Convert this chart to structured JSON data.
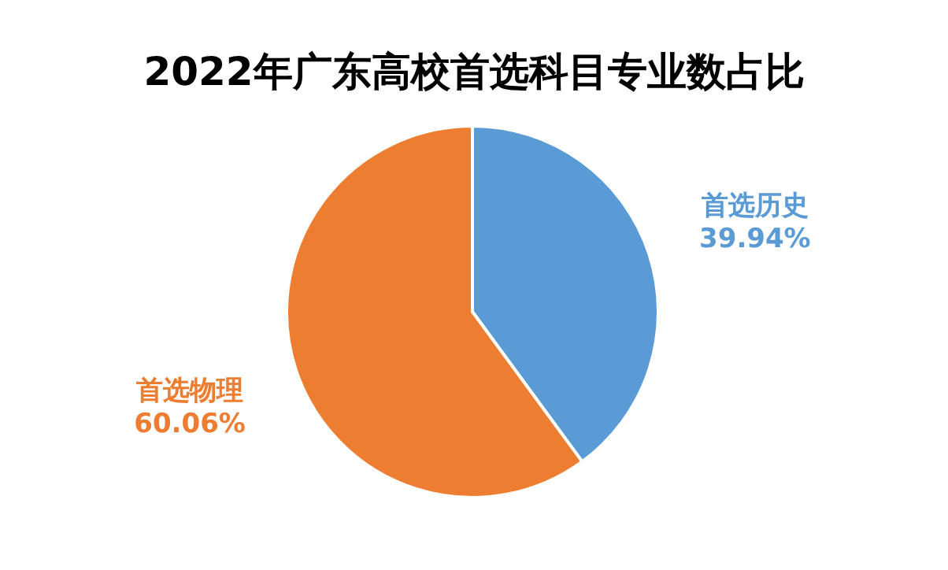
{
  "chart_data": {
    "type": "pie",
    "title": "2022年广东高校首选科目专业数占比",
    "categories": [
      "首选历史",
      "首选物理"
    ],
    "values": [
      39.94,
      60.06
    ],
    "colors": [
      "#5b9bd5",
      "#ed7d31"
    ],
    "value_labels": [
      "39.94%",
      "60.06%"
    ]
  }
}
